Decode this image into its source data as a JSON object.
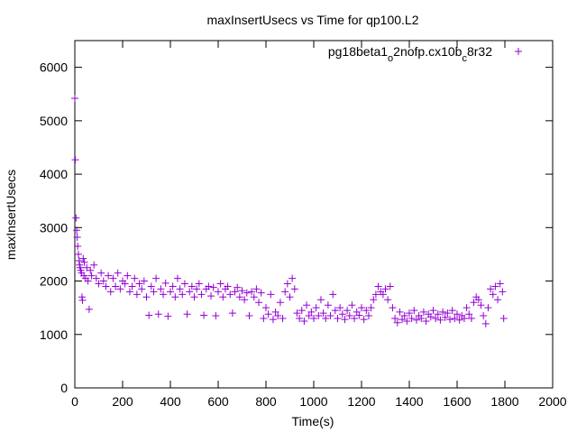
{
  "chart_data": {
    "type": "scatter",
    "title": "maxInsertUsecs vs Time for qp100.L2",
    "xlabel": "Time(s)",
    "ylabel": "maxInsertUsecs",
    "xlim": [
      0,
      2000
    ],
    "ylim": [
      0,
      6500
    ],
    "xticks": [
      "0",
      "200",
      "400",
      "600",
      "800",
      "1000",
      "1200",
      "1400",
      "1600",
      "1800",
      "2000"
    ],
    "yticks": [
      "0",
      "1000",
      "2000",
      "3000",
      "4000",
      "5000",
      "6000"
    ],
    "grid": false,
    "legend_position": "top-right",
    "legend": {
      "parts": [
        {
          "text": "pg18beta1",
          "sub": false
        },
        {
          "text": "o",
          "sub": true
        },
        {
          "text": "2nofp.cx10b",
          "sub": false
        },
        {
          "text": "c",
          "sub": true
        },
        {
          "text": "8r32",
          "sub": false
        }
      ]
    },
    "series": [
      {
        "marker": "+",
        "color": "#9400d3",
        "points": [
          [
            0,
            5420
          ],
          [
            2,
            4270
          ],
          [
            5,
            3180
          ],
          [
            8,
            2950
          ],
          [
            10,
            2820
          ],
          [
            12,
            2650
          ],
          [
            15,
            2500
          ],
          [
            18,
            2380
          ],
          [
            20,
            2300
          ],
          [
            22,
            2250
          ],
          [
            25,
            2200
          ],
          [
            28,
            2150
          ],
          [
            30,
            1700
          ],
          [
            32,
            1640
          ],
          [
            35,
            2420
          ],
          [
            38,
            2100
          ],
          [
            40,
            2350
          ],
          [
            45,
            2050
          ],
          [
            50,
            2250
          ],
          [
            55,
            2000
          ],
          [
            60,
            1470
          ],
          [
            65,
            2200
          ],
          [
            70,
            2100
          ],
          [
            80,
            2300
          ],
          [
            90,
            2050
          ],
          [
            100,
            1950
          ],
          [
            110,
            2150
          ],
          [
            120,
            2000
          ],
          [
            130,
            1900
          ],
          [
            140,
            2100
          ],
          [
            150,
            1800
          ],
          [
            160,
            2050
          ],
          [
            170,
            1900
          ],
          [
            180,
            2150
          ],
          [
            190,
            1850
          ],
          [
            200,
            2000
          ],
          [
            210,
            1950
          ],
          [
            220,
            2100
          ],
          [
            230,
            1800
          ],
          [
            240,
            1900
          ],
          [
            250,
            2050
          ],
          [
            260,
            1750
          ],
          [
            270,
            1950
          ],
          [
            280,
            1850
          ],
          [
            290,
            2000
          ],
          [
            300,
            1700
          ],
          [
            310,
            1360
          ],
          [
            320,
            1900
          ],
          [
            330,
            1800
          ],
          [
            340,
            2050
          ],
          [
            350,
            1380
          ],
          [
            360,
            1850
          ],
          [
            370,
            1750
          ],
          [
            380,
            1960
          ],
          [
            390,
            1340
          ],
          [
            400,
            1800
          ],
          [
            410,
            1900
          ],
          [
            420,
            1700
          ],
          [
            430,
            2050
          ],
          [
            440,
            1850
          ],
          [
            450,
            1750
          ],
          [
            460,
            1950
          ],
          [
            470,
            1380
          ],
          [
            480,
            1800
          ],
          [
            490,
            1900
          ],
          [
            500,
            1700
          ],
          [
            510,
            1850
          ],
          [
            520,
            1950
          ],
          [
            530,
            1750
          ],
          [
            540,
            1360
          ],
          [
            550,
            1850
          ],
          [
            560,
            1900
          ],
          [
            570,
            1720
          ],
          [
            580,
            1880
          ],
          [
            590,
            1350
          ],
          [
            600,
            1800
          ],
          [
            610,
            1950
          ],
          [
            620,
            1700
          ],
          [
            630,
            1850
          ],
          [
            640,
            1900
          ],
          [
            650,
            1750
          ],
          [
            660,
            1400
          ],
          [
            670,
            1800
          ],
          [
            680,
            1880
          ],
          [
            690,
            1700
          ],
          [
            700,
            1820
          ],
          [
            710,
            1650
          ],
          [
            720,
            1780
          ],
          [
            730,
            1350
          ],
          [
            740,
            1800
          ],
          [
            750,
            1700
          ],
          [
            760,
            1850
          ],
          [
            770,
            1600
          ],
          [
            780,
            1780
          ],
          [
            790,
            1300
          ],
          [
            800,
            1500
          ],
          [
            810,
            1380
          ],
          [
            820,
            1750
          ],
          [
            830,
            1280
          ],
          [
            840,
            1420
          ],
          [
            850,
            1350
          ],
          [
            860,
            1600
          ],
          [
            870,
            1300
          ],
          [
            880,
            1800
          ],
          [
            890,
            1950
          ],
          [
            900,
            1700
          ],
          [
            910,
            2050
          ],
          [
            920,
            1850
          ],
          [
            930,
            1400
          ],
          [
            940,
            1300
          ],
          [
            950,
            1450
          ],
          [
            960,
            1250
          ],
          [
            970,
            1550
          ],
          [
            980,
            1350
          ],
          [
            990,
            1420
          ],
          [
            1000,
            1300
          ],
          [
            1010,
            1500
          ],
          [
            1020,
            1350
          ],
          [
            1030,
            1650
          ],
          [
            1040,
            1400
          ],
          [
            1050,
            1300
          ],
          [
            1060,
            1550
          ],
          [
            1070,
            1350
          ],
          [
            1080,
            1750
          ],
          [
            1090,
            1450
          ],
          [
            1100,
            1300
          ],
          [
            1110,
            1500
          ],
          [
            1120,
            1380
          ],
          [
            1130,
            1280
          ],
          [
            1140,
            1450
          ],
          [
            1150,
            1350
          ],
          [
            1160,
            1550
          ],
          [
            1170,
            1300
          ],
          [
            1180,
            1420
          ],
          [
            1190,
            1360
          ],
          [
            1200,
            1500
          ],
          [
            1210,
            1280
          ],
          [
            1220,
            1450
          ],
          [
            1230,
            1350
          ],
          [
            1240,
            1500
          ],
          [
            1250,
            1650
          ],
          [
            1260,
            1750
          ],
          [
            1270,
            1900
          ],
          [
            1280,
            1800
          ],
          [
            1290,
            1750
          ],
          [
            1300,
            1850
          ],
          [
            1310,
            1650
          ],
          [
            1320,
            1900
          ],
          [
            1330,
            1500
          ],
          [
            1340,
            1300
          ],
          [
            1350,
            1220
          ],
          [
            1360,
            1420
          ],
          [
            1370,
            1280
          ],
          [
            1380,
            1350
          ],
          [
            1390,
            1250
          ],
          [
            1400,
            1400
          ],
          [
            1410,
            1300
          ],
          [
            1420,
            1450
          ],
          [
            1430,
            1270
          ],
          [
            1440,
            1350
          ],
          [
            1450,
            1300
          ],
          [
            1460,
            1420
          ],
          [
            1470,
            1250
          ],
          [
            1480,
            1380
          ],
          [
            1490,
            1330
          ],
          [
            1500,
            1450
          ],
          [
            1510,
            1300
          ],
          [
            1520,
            1380
          ],
          [
            1530,
            1270
          ],
          [
            1540,
            1420
          ],
          [
            1550,
            1320
          ],
          [
            1560,
            1400
          ],
          [
            1570,
            1280
          ],
          [
            1580,
            1450
          ],
          [
            1590,
            1300
          ],
          [
            1600,
            1380
          ],
          [
            1610,
            1270
          ],
          [
            1620,
            1350
          ],
          [
            1630,
            1300
          ],
          [
            1640,
            1500
          ],
          [
            1650,
            1380
          ],
          [
            1660,
            1300
          ],
          [
            1670,
            1600
          ],
          [
            1680,
            1700
          ],
          [
            1690,
            1650
          ],
          [
            1700,
            1550
          ],
          [
            1710,
            1350
          ],
          [
            1720,
            1200
          ],
          [
            1730,
            1500
          ],
          [
            1740,
            1850
          ],
          [
            1750,
            1750
          ],
          [
            1760,
            1900
          ],
          [
            1770,
            1650
          ],
          [
            1780,
            1950
          ],
          [
            1790,
            1800
          ],
          [
            1795,
            1300
          ]
        ]
      }
    ]
  }
}
